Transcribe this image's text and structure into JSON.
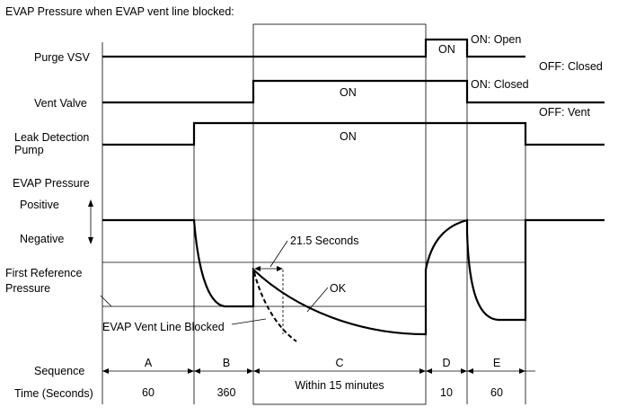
{
  "title": "EVAP Pressure when EVAP vent line blocked:",
  "rows": {
    "purge_vsv": "Purge VSV",
    "vent_valve": "Vent Valve",
    "leak_pump_line1": "Leak Detection",
    "leak_pump_line2": "Pump",
    "evap_pressure": "EVAP Pressure",
    "positive": "Positive",
    "negative": "Negative",
    "first_ref_line1": "First Reference",
    "first_ref_line2": "Pressure",
    "sequence": "Sequence",
    "time": "Time (Seconds)"
  },
  "states": {
    "on": "ON",
    "purge_on": "ON: Open",
    "purge_off": "OFF: Closed",
    "vent_on": "ON: Closed",
    "vent_off": "OFF: Vent"
  },
  "annotations": {
    "seconds": "21.5 Seconds",
    "ok": "OK",
    "blocked": "EVAP Vent Line Blocked"
  },
  "sequence": [
    {
      "label": "A",
      "time": "60"
    },
    {
      "label": "B",
      "time": "360"
    },
    {
      "label": "C",
      "time": "Within 15 minutes"
    },
    {
      "label": "D",
      "time": "10"
    },
    {
      "label": "E",
      "time": "60"
    }
  ]
}
